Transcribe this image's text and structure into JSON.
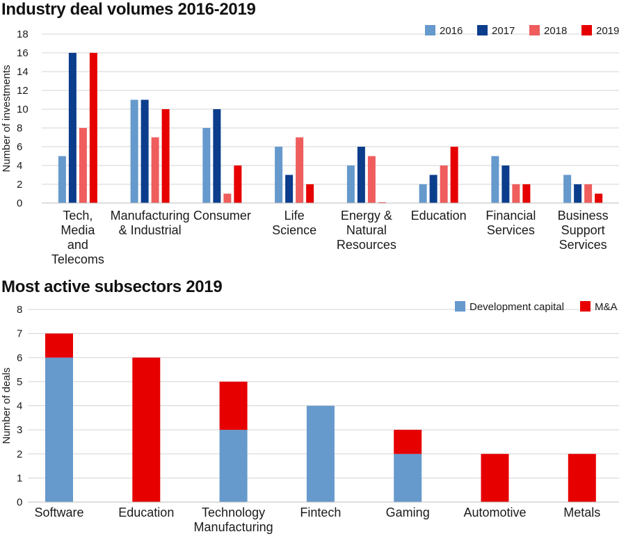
{
  "chart_data": [
    {
      "type": "bar",
      "title": "Industry deal volumes 2016-2019",
      "ylabel": "Number of investments",
      "ylim": [
        0,
        18
      ],
      "yticks": [
        0,
        2,
        4,
        6,
        8,
        10,
        12,
        14,
        16,
        18
      ],
      "legend_position": "top-right",
      "grid": true,
      "categories": [
        "Tech, Media and Telecoms",
        "Manufacturing & Industrial",
        "Consumer",
        "Life Science",
        "Energy & Natural Resources",
        "Education",
        "Financial Services",
        "Business Support Services"
      ],
      "category_lines": [
        [
          "Tech,",
          "Media",
          "and",
          "Telecoms"
        ],
        [
          "Manufacturing",
          "& Industrial"
        ],
        [
          "Consumer"
        ],
        [
          "Life",
          "Science"
        ],
        [
          "Energy &",
          "Natural",
          "Resources"
        ],
        [
          "Education"
        ],
        [
          "Financial",
          "Services"
        ],
        [
          "Business",
          "Support",
          "Services"
        ]
      ],
      "series": [
        {
          "name": "2016",
          "color": "#6699cc",
          "values": [
            5,
            11,
            8,
            6,
            4,
            2,
            5,
            3
          ]
        },
        {
          "name": "2017",
          "color": "#0b3d8c",
          "values": [
            16,
            11,
            10,
            3,
            6,
            3,
            4,
            2
          ]
        },
        {
          "name": "2018",
          "color": "#ef5d5d",
          "values": [
            8,
            7,
            1,
            7,
            5,
            4,
            2,
            2
          ]
        },
        {
          "name": "2019",
          "color": "#e60000",
          "values": [
            16,
            10,
            4,
            2,
            0,
            6,
            2,
            1
          ]
        }
      ]
    },
    {
      "type": "bar",
      "stacked": true,
      "title": "Most active subsectors 2019",
      "ylabel": "Number of deals",
      "ylim": [
        0,
        8
      ],
      "yticks": [
        0,
        1,
        2,
        3,
        4,
        5,
        6,
        7,
        8
      ],
      "legend_position": "top-right",
      "grid": true,
      "categories": [
        "Software",
        "Education",
        "Technology Manufacturing",
        "Fintech",
        "Gaming",
        "Automotive",
        "Metals"
      ],
      "category_lines": [
        [
          "Software"
        ],
        [
          "Education"
        ],
        [
          "Technology",
          "Manufacturing"
        ],
        [
          "Fintech"
        ],
        [
          "Gaming"
        ],
        [
          "Automotive"
        ],
        [
          "Metals"
        ]
      ],
      "series": [
        {
          "name": "Development capital",
          "color": "#6699cc",
          "values": [
            6,
            0,
            3,
            4,
            2,
            0,
            0
          ]
        },
        {
          "name": "M&A",
          "color": "#e60000",
          "values": [
            1,
            6,
            2,
            0,
            1,
            2,
            2
          ]
        }
      ]
    }
  ]
}
